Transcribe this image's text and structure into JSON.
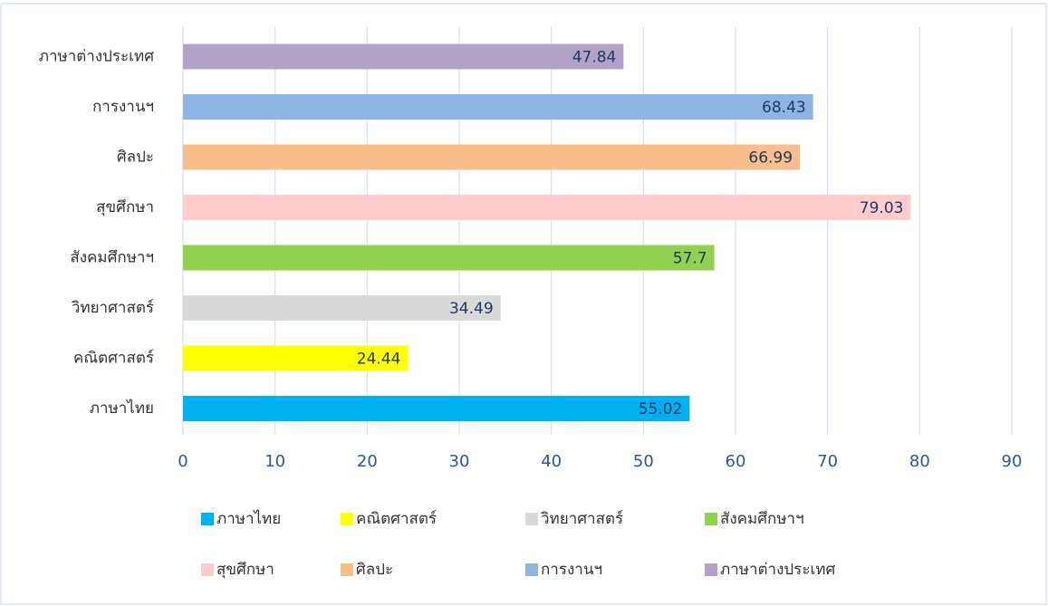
{
  "chart_data": {
    "type": "bar",
    "orientation": "horizontal",
    "categories": [
      "ภาษาไทย",
      "คณิตศาสตร์",
      "วิทยาศาสตร์",
      "สังคมศึกษาฯ",
      "สุขศึกษา",
      "ศิลปะ",
      "การงานฯ",
      "ภาษาต่างประเทศ"
    ],
    "values": [
      55.02,
      24.44,
      34.49,
      57.7,
      79.03,
      66.99,
      68.43,
      47.84
    ],
    "colors": [
      "#00b0f0",
      "#ffff00",
      "#d9d9d9",
      "#92d050",
      "#ffcccc",
      "#f8bf8c",
      "#8eb4e3",
      "#b3a2c7"
    ],
    "xlim": [
      0,
      90
    ],
    "xticks": [
      0,
      10,
      20,
      30,
      40,
      50,
      60,
      70,
      80,
      90
    ],
    "grid": true,
    "legend": "bottom"
  }
}
